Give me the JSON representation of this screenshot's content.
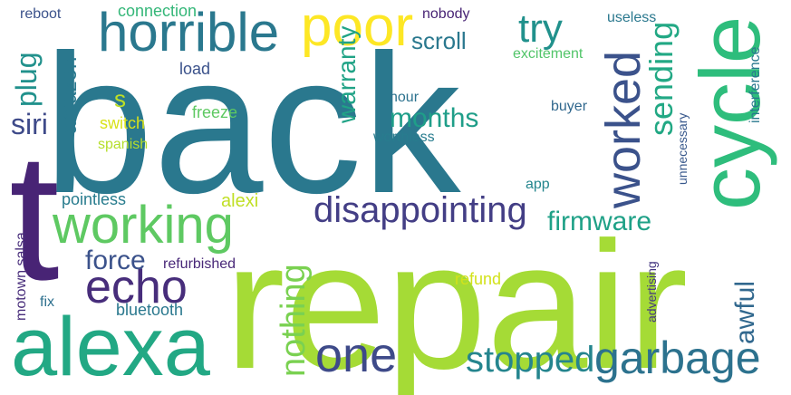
{
  "words": [
    {
      "text": "back",
      "color": "#2a788e"
    },
    {
      "text": "repair",
      "color": "#a5db36"
    },
    {
      "text": "t",
      "color": "#482475"
    },
    {
      "text": "alexa",
      "color": "#22a884"
    },
    {
      "text": "cycle",
      "color": "#2ebd7c"
    },
    {
      "text": "horrible",
      "color": "#2a788e"
    },
    {
      "text": "poor",
      "color": "#fde725"
    },
    {
      "text": "working",
      "color": "#5ec962"
    },
    {
      "text": "worked",
      "color": "#3b528b"
    },
    {
      "text": "echo",
      "color": "#472d7b"
    },
    {
      "text": "one",
      "color": "#3e4a89"
    },
    {
      "text": "garbage",
      "color": "#2c728e"
    },
    {
      "text": "disappointing",
      "color": "#433e85"
    },
    {
      "text": "stopped",
      "color": "#25858e"
    },
    {
      "text": "try",
      "color": "#21918c"
    },
    {
      "text": "nothing",
      "color": "#7ad151"
    },
    {
      "text": "sending",
      "color": "#22a884"
    },
    {
      "text": "months",
      "color": "#1f9e89"
    },
    {
      "text": "firmware",
      "color": "#1fa187"
    },
    {
      "text": "awful",
      "color": "#31688e"
    },
    {
      "text": "force",
      "color": "#3b528b"
    },
    {
      "text": "siri",
      "color": "#3e4a89"
    },
    {
      "text": "plug",
      "color": "#21918c"
    },
    {
      "text": "amazon",
      "color": "#2a788e"
    },
    {
      "text": "warranty",
      "color": "#20a386"
    },
    {
      "text": "scroll",
      "color": "#2a788e"
    },
    {
      "text": "s",
      "color": "#bddf26"
    },
    {
      "text": "switch",
      "color": "#d8e219"
    },
    {
      "text": "spanish",
      "color": "#b5de2b"
    },
    {
      "text": "freeze",
      "color": "#5ec962"
    },
    {
      "text": "load",
      "color": "#3b528b"
    },
    {
      "text": "connection",
      "color": "#35b779"
    },
    {
      "text": "nobody",
      "color": "#482475"
    },
    {
      "text": "useless",
      "color": "#2a788e"
    },
    {
      "text": "excitement",
      "color": "#52c569"
    },
    {
      "text": "hour",
      "color": "#2c728e"
    },
    {
      "text": "worthless",
      "color": "#287c8e"
    },
    {
      "text": "buyer",
      "color": "#31688e"
    },
    {
      "text": "interference",
      "color": "#2a788e"
    },
    {
      "text": "unnecessary",
      "color": "#38588c"
    },
    {
      "text": "app",
      "color": "#24868e"
    },
    {
      "text": "alexi",
      "color": "#c0df25"
    },
    {
      "text": "pointless",
      "color": "#287c8e"
    },
    {
      "text": "refurbished",
      "color": "#482878"
    },
    {
      "text": "motown salsa",
      "color": "#472c7a"
    },
    {
      "text": "fix",
      "color": "#2d708e"
    },
    {
      "text": "bluetooth",
      "color": "#2a788e"
    },
    {
      "text": "refund",
      "color": "#d2e21b"
    },
    {
      "text": "advertising",
      "color": "#453781"
    },
    {
      "text": "reboot",
      "color": "#3b528b"
    }
  ]
}
